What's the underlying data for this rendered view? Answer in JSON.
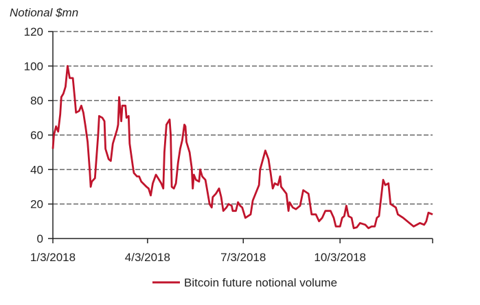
{
  "chart_data": {
    "type": "line",
    "title": "",
    "ylabel": "Notional $mn",
    "xlabel": "",
    "ylim": [
      0,
      120
    ],
    "xlim": [
      "2018-01-03",
      "2018-12-30"
    ],
    "yticks": [
      "0",
      "20",
      "40",
      "60",
      "80",
      "100",
      "120"
    ],
    "xticks": [
      {
        "label": "1/3/2018",
        "date": "2018-01-03"
      },
      {
        "label": "4/3/2018",
        "date": "2018-04-03"
      },
      {
        "label": "7/3/2018",
        "date": "2018-07-03"
      },
      {
        "label": "10/3/2018",
        "date": "2018-10-03"
      }
    ],
    "grid": "horizontal-dashed",
    "legend": "bottom",
    "color": "#c0142c",
    "series": [
      {
        "name": "Bitcoin future notional volume",
        "points": [
          [
            "2018-01-03",
            52
          ],
          [
            "2018-01-04",
            60
          ],
          [
            "2018-01-06",
            65
          ],
          [
            "2018-01-08",
            62
          ],
          [
            "2018-01-10",
            72
          ],
          [
            "2018-01-11",
            82
          ],
          [
            "2018-01-13",
            84
          ],
          [
            "2018-01-15",
            88
          ],
          [
            "2018-01-17",
            100
          ],
          [
            "2018-01-19",
            93
          ],
          [
            "2018-01-22",
            93
          ],
          [
            "2018-01-24",
            80
          ],
          [
            "2018-01-25",
            73
          ],
          [
            "2018-01-28",
            74
          ],
          [
            "2018-01-30",
            77
          ],
          [
            "2018-02-01",
            73
          ],
          [
            "2018-02-03",
            65
          ],
          [
            "2018-02-05",
            56
          ],
          [
            "2018-02-07",
            40
          ],
          [
            "2018-02-08",
            30
          ],
          [
            "2018-02-09",
            33
          ],
          [
            "2018-02-12",
            35
          ],
          [
            "2018-02-15",
            60
          ],
          [
            "2018-02-16",
            71
          ],
          [
            "2018-02-19",
            70
          ],
          [
            "2018-02-21",
            68
          ],
          [
            "2018-02-22",
            52
          ],
          [
            "2018-02-25",
            46
          ],
          [
            "2018-02-27",
            45
          ],
          [
            "2018-03-01",
            55
          ],
          [
            "2018-03-05",
            63
          ],
          [
            "2018-03-06",
            66
          ],
          [
            "2018-03-07",
            82
          ],
          [
            "2018-03-09",
            68
          ],
          [
            "2018-03-10",
            77
          ],
          [
            "2018-03-13",
            77
          ],
          [
            "2018-03-14",
            70
          ],
          [
            "2018-03-16",
            71
          ],
          [
            "2018-03-17",
            55
          ],
          [
            "2018-03-20",
            42
          ],
          [
            "2018-03-21",
            38
          ],
          [
            "2018-03-24",
            36
          ],
          [
            "2018-03-26",
            36
          ],
          [
            "2018-03-28",
            33
          ],
          [
            "2018-04-02",
            30
          ],
          [
            "2018-04-04",
            29
          ],
          [
            "2018-04-06",
            25
          ],
          [
            "2018-04-08",
            32
          ],
          [
            "2018-04-11",
            37
          ],
          [
            "2018-04-13",
            35
          ],
          [
            "2018-04-16",
            32
          ],
          [
            "2018-04-18",
            29
          ],
          [
            "2018-04-19",
            50
          ],
          [
            "2018-04-21",
            66
          ],
          [
            "2018-04-23",
            68
          ],
          [
            "2018-04-24",
            69
          ],
          [
            "2018-04-25",
            60
          ],
          [
            "2018-04-26",
            30
          ],
          [
            "2018-04-28",
            29
          ],
          [
            "2018-04-30",
            32
          ],
          [
            "2018-05-02",
            44
          ],
          [
            "2018-05-04",
            52
          ],
          [
            "2018-05-06",
            57
          ],
          [
            "2018-05-08",
            66
          ],
          [
            "2018-05-09",
            65
          ],
          [
            "2018-05-10",
            56
          ],
          [
            "2018-05-13",
            50
          ],
          [
            "2018-05-15",
            41
          ],
          [
            "2018-05-16",
            29
          ],
          [
            "2018-05-17",
            37
          ],
          [
            "2018-05-19",
            34
          ],
          [
            "2018-05-22",
            33
          ],
          [
            "2018-05-23",
            40
          ],
          [
            "2018-05-25",
            36
          ],
          [
            "2018-05-28",
            34
          ],
          [
            "2018-05-30",
            27
          ],
          [
            "2018-06-01",
            20
          ],
          [
            "2018-06-03",
            18
          ],
          [
            "2018-06-04",
            24
          ],
          [
            "2018-06-07",
            26
          ],
          [
            "2018-06-09",
            28
          ],
          [
            "2018-06-10",
            29
          ],
          [
            "2018-06-12",
            24
          ],
          [
            "2018-06-14",
            16
          ],
          [
            "2018-06-17",
            18
          ],
          [
            "2018-06-19",
            20
          ],
          [
            "2018-06-22",
            19
          ],
          [
            "2018-06-23",
            16
          ],
          [
            "2018-06-26",
            16
          ],
          [
            "2018-06-28",
            21
          ],
          [
            "2018-06-30",
            19
          ],
          [
            "2018-07-02",
            18
          ],
          [
            "2018-07-05",
            12
          ],
          [
            "2018-07-10",
            14
          ],
          [
            "2018-07-12",
            22
          ],
          [
            "2018-07-18",
            31
          ],
          [
            "2018-07-19",
            40
          ],
          [
            "2018-07-24",
            51
          ],
          [
            "2018-07-27",
            46
          ],
          [
            "2018-07-29",
            38
          ],
          [
            "2018-07-31",
            29
          ],
          [
            "2018-08-02",
            32
          ],
          [
            "2018-08-05",
            31
          ],
          [
            "2018-08-07",
            36
          ],
          [
            "2018-08-08",
            30
          ],
          [
            "2018-08-13",
            26
          ],
          [
            "2018-08-15",
            16
          ],
          [
            "2018-08-16",
            21
          ],
          [
            "2018-08-19",
            18
          ],
          [
            "2018-08-22",
            17
          ],
          [
            "2018-08-26",
            19
          ],
          [
            "2018-08-29",
            28
          ],
          [
            "2018-09-03",
            26
          ],
          [
            "2018-09-06",
            14
          ],
          [
            "2018-09-10",
            14
          ],
          [
            "2018-09-13",
            10
          ],
          [
            "2018-09-16",
            12
          ],
          [
            "2018-09-19",
            16
          ],
          [
            "2018-09-24",
            16
          ],
          [
            "2018-09-27",
            12
          ],
          [
            "2018-09-29",
            7
          ],
          [
            "2018-10-03",
            7
          ],
          [
            "2018-10-05",
            12
          ],
          [
            "2018-10-07",
            13
          ],
          [
            "2018-10-09",
            19
          ],
          [
            "2018-10-11",
            13
          ],
          [
            "2018-10-14",
            12
          ],
          [
            "2018-10-16",
            6
          ],
          [
            "2018-10-19",
            6.5
          ],
          [
            "2018-10-22",
            9
          ],
          [
            "2018-10-27",
            8
          ],
          [
            "2018-10-30",
            6
          ],
          [
            "2018-11-02",
            7
          ],
          [
            "2018-11-05",
            7
          ],
          [
            "2018-11-07",
            12
          ],
          [
            "2018-11-09",
            13
          ],
          [
            "2018-11-13",
            34
          ],
          [
            "2018-11-15",
            31
          ],
          [
            "2018-11-18",
            32
          ],
          [
            "2018-11-20",
            20
          ],
          [
            "2018-11-25",
            18
          ],
          [
            "2018-11-27",
            14
          ],
          [
            "2018-12-02",
            12
          ],
          [
            "2018-12-08",
            9
          ],
          [
            "2018-12-12",
            7
          ],
          [
            "2018-12-15",
            8
          ],
          [
            "2018-12-18",
            9
          ],
          [
            "2018-12-22",
            8
          ],
          [
            "2018-12-24",
            10
          ],
          [
            "2018-12-26",
            15
          ],
          [
            "2018-12-30",
            14
          ]
        ]
      }
    ]
  }
}
